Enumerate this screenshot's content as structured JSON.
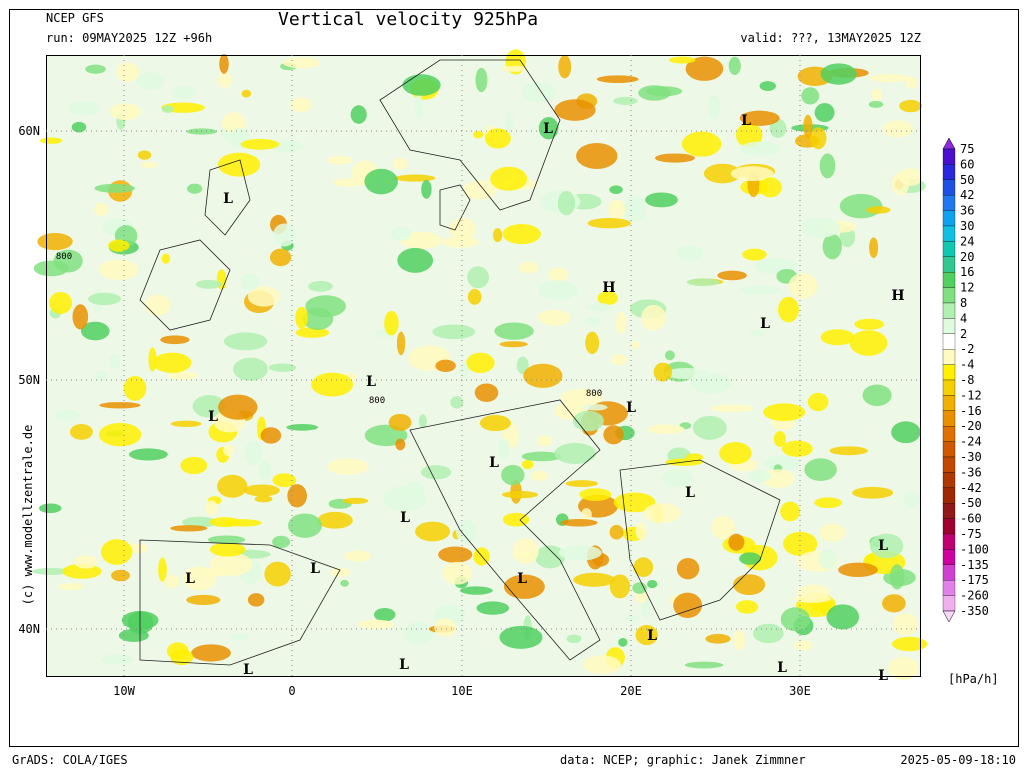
{
  "header": {
    "model": "NCEP GFS",
    "title": "Vertical velocity 925hPa",
    "run": "run: 09MAY2025 12Z +96h",
    "valid": "valid: ???, 13MAY2025 12Z"
  },
  "map": {
    "lat_labels": [
      "60N",
      "50N",
      "40N"
    ],
    "lon_labels": [
      "10W",
      "0",
      "10E",
      "20E",
      "30E"
    ],
    "pressure_centers": [
      "L",
      "L",
      "L",
      "H",
      "H",
      "L",
      "L",
      "L",
      "L",
      "L",
      "L",
      "L",
      "L",
      "L",
      "L",
      "L",
      "L",
      "L",
      "L",
      "L",
      "L"
    ],
    "contour_labels": [
      "800",
      "800",
      "800"
    ],
    "credit": "(c) www.modellzentrale.de"
  },
  "legend": {
    "unit": "[hPa/h]",
    "labels": [
      "75",
      "60",
      "50",
      "42",
      "36",
      "30",
      "24",
      "20",
      "16",
      "12",
      "8",
      "4",
      "2",
      "-2",
      "-4",
      "-8",
      "-12",
      "-16",
      "-20",
      "-24",
      "-30",
      "-36",
      "-42",
      "-50",
      "-60",
      "-75",
      "-100",
      "-135",
      "-175",
      "-260",
      "-350"
    ],
    "colors": [
      "#8a2be2",
      "#4b0fcf",
      "#2828e0",
      "#1e50e6",
      "#1e78f0",
      "#10a0f0",
      "#10c0e0",
      "#10c8b0",
      "#30c890",
      "#50d060",
      "#80e080",
      "#b0f0b0",
      "#e0fae0",
      "#ffffff",
      "#fffac0",
      "#fff000",
      "#f5d000",
      "#f0b000",
      "#e89000",
      "#e07000",
      "#d05800",
      "#c04800",
      "#b03800",
      "#a02800",
      "#901818",
      "#a00030",
      "#c00070",
      "#d000a0",
      "#d040d0",
      "#e080e8",
      "#f0b0f0",
      "#f8d8f8"
    ]
  },
  "footer": {
    "left": "GrADS: COLA/IGES",
    "middle": "data: NCEP; graphic: Janek Zimmner",
    "right": "2025-05-09-18:10"
  }
}
